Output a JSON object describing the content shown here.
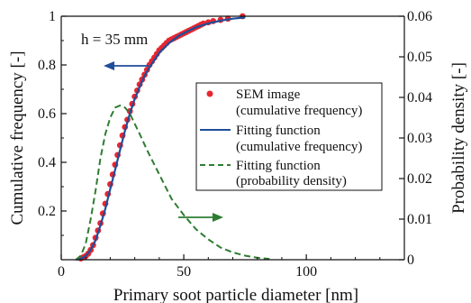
{
  "chart_data": {
    "type": "line",
    "annotation": "h = 35 mm",
    "xlabel": "Primary soot particle diameter [nm]",
    "ylabel_left": "Cumulative frequency [-]",
    "ylabel_right": "Probability density [-]",
    "xlim": [
      0,
      140
    ],
    "ylim_left": [
      0,
      1
    ],
    "ylim_right": [
      0,
      0.06
    ],
    "x_ticks": [
      0,
      50,
      100
    ],
    "y_ticks_left": [
      0.2,
      0.4,
      0.6,
      0.8,
      1
    ],
    "y_ticks_right": [
      0,
      0.01,
      0.02,
      0.03,
      0.04,
      0.05,
      0.06
    ],
    "x_tick_labels": [
      "0",
      "50",
      "100"
    ],
    "y_tick_labels_left": [
      "0.2",
      "0.4",
      "0.6",
      "0.8",
      "1"
    ],
    "y_tick_labels_right": [
      "0",
      "0.01",
      "0.02",
      "0.03",
      "0.04",
      "0.05",
      "0.06"
    ],
    "legend_position": "center-right",
    "legend": [
      {
        "line1": "SEM image",
        "line2": "(cumulative frequency)"
      },
      {
        "line1": "Fitting function",
        "line2": "(cumulative frequency)"
      },
      {
        "line1": "Fitting function",
        "line2": "(probability density)"
      }
    ],
    "series": [
      {
        "marker": "dot",
        "axis": "left",
        "color": "#e8262f",
        "x": [
          8,
          9,
          10,
          11,
          12,
          13,
          14,
          15,
          16,
          17,
          18,
          19,
          20,
          21,
          22,
          23,
          24,
          25,
          26,
          27,
          28,
          29,
          30,
          31,
          32,
          33,
          34,
          35,
          36,
          37,
          38,
          39,
          40,
          41,
          42,
          43,
          44,
          45,
          46,
          47,
          48,
          49,
          50,
          51,
          52,
          53,
          54,
          55,
          56,
          57,
          58,
          60,
          62,
          65,
          68,
          74
        ],
        "y": [
          0.005,
          0.01,
          0.015,
          0.025,
          0.04,
          0.06,
          0.09,
          0.12,
          0.15,
          0.19,
          0.23,
          0.27,
          0.31,
          0.35,
          0.39,
          0.43,
          0.47,
          0.51,
          0.545,
          0.575,
          0.61,
          0.64,
          0.67,
          0.695,
          0.72,
          0.74,
          0.76,
          0.78,
          0.8,
          0.815,
          0.83,
          0.845,
          0.86,
          0.87,
          0.88,
          0.89,
          0.9,
          0.905,
          0.91,
          0.915,
          0.92,
          0.925,
          0.93,
          0.935,
          0.94,
          0.945,
          0.95,
          0.955,
          0.96,
          0.965,
          0.97,
          0.975,
          0.98,
          0.985,
          0.99,
          1.0
        ]
      },
      {
        "marker": "line",
        "axis": "left",
        "color": "#1f4e9a",
        "x": [
          6,
          8,
          10,
          12,
          14,
          16,
          18,
          20,
          22,
          24,
          26,
          28,
          30,
          32,
          34,
          36,
          38,
          40,
          42,
          44,
          46,
          48,
          50,
          52,
          55,
          60,
          65,
          70,
          75
        ],
        "y": [
          0,
          0.004,
          0.015,
          0.04,
          0.08,
          0.14,
          0.21,
          0.29,
          0.37,
          0.45,
          0.53,
          0.6,
          0.66,
          0.71,
          0.755,
          0.79,
          0.82,
          0.85,
          0.87,
          0.89,
          0.905,
          0.92,
          0.93,
          0.94,
          0.955,
          0.97,
          0.982,
          0.99,
          0.995
        ]
      },
      {
        "marker": "dash",
        "axis": "right",
        "color": "#2e7d32",
        "x": [
          6,
          8,
          10,
          12,
          14,
          16,
          18,
          20,
          22,
          24,
          26,
          28,
          30,
          32,
          35,
          40,
          45,
          50,
          55,
          60,
          65,
          70,
          75,
          80,
          85
        ],
        "y": [
          0,
          0.001,
          0.004,
          0.01,
          0.017,
          0.025,
          0.031,
          0.035,
          0.0375,
          0.038,
          0.0375,
          0.036,
          0.0335,
          0.031,
          0.027,
          0.021,
          0.015,
          0.011,
          0.0075,
          0.005,
          0.003,
          0.0018,
          0.001,
          0.0005,
          0.0002
        ]
      }
    ]
  }
}
